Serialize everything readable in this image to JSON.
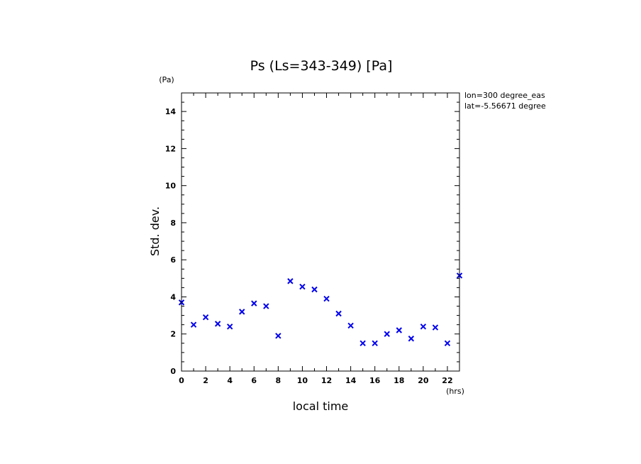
{
  "chart_data": {
    "type": "scatter",
    "title": "Ps (Ls=343-349) [Pa]",
    "xlabel": "local time",
    "ylabel": "Std. dev.",
    "x_unit": "(hrs)",
    "y_unit": "(Pa)",
    "annotations": [
      "lon=300 degree_eas",
      "lat=-5.56671 degree"
    ],
    "xlim": [
      0,
      23
    ],
    "ylim": [
      0,
      15
    ],
    "x_ticks": [
      "0",
      "2",
      "4",
      "6",
      "8",
      "10",
      "12",
      "14",
      "16",
      "18",
      "20",
      "22"
    ],
    "y_ticks": [
      "0",
      "2",
      "4",
      "6",
      "8",
      "10",
      "12",
      "14"
    ],
    "marker": "x",
    "marker_color": "#0000ee",
    "x": [
      0,
      1,
      2,
      3,
      4,
      5,
      6,
      7,
      8,
      9,
      10,
      11,
      12,
      13,
      14,
      15,
      16,
      17,
      18,
      19,
      20,
      21,
      22,
      23
    ],
    "values": [
      3.7,
      2.5,
      2.9,
      2.55,
      2.4,
      3.2,
      3.65,
      3.5,
      1.9,
      4.85,
      4.55,
      4.4,
      3.9,
      3.1,
      2.45,
      1.5,
      1.5,
      2.0,
      2.2,
      1.75,
      2.4,
      2.35,
      1.5,
      5.15
    ]
  }
}
